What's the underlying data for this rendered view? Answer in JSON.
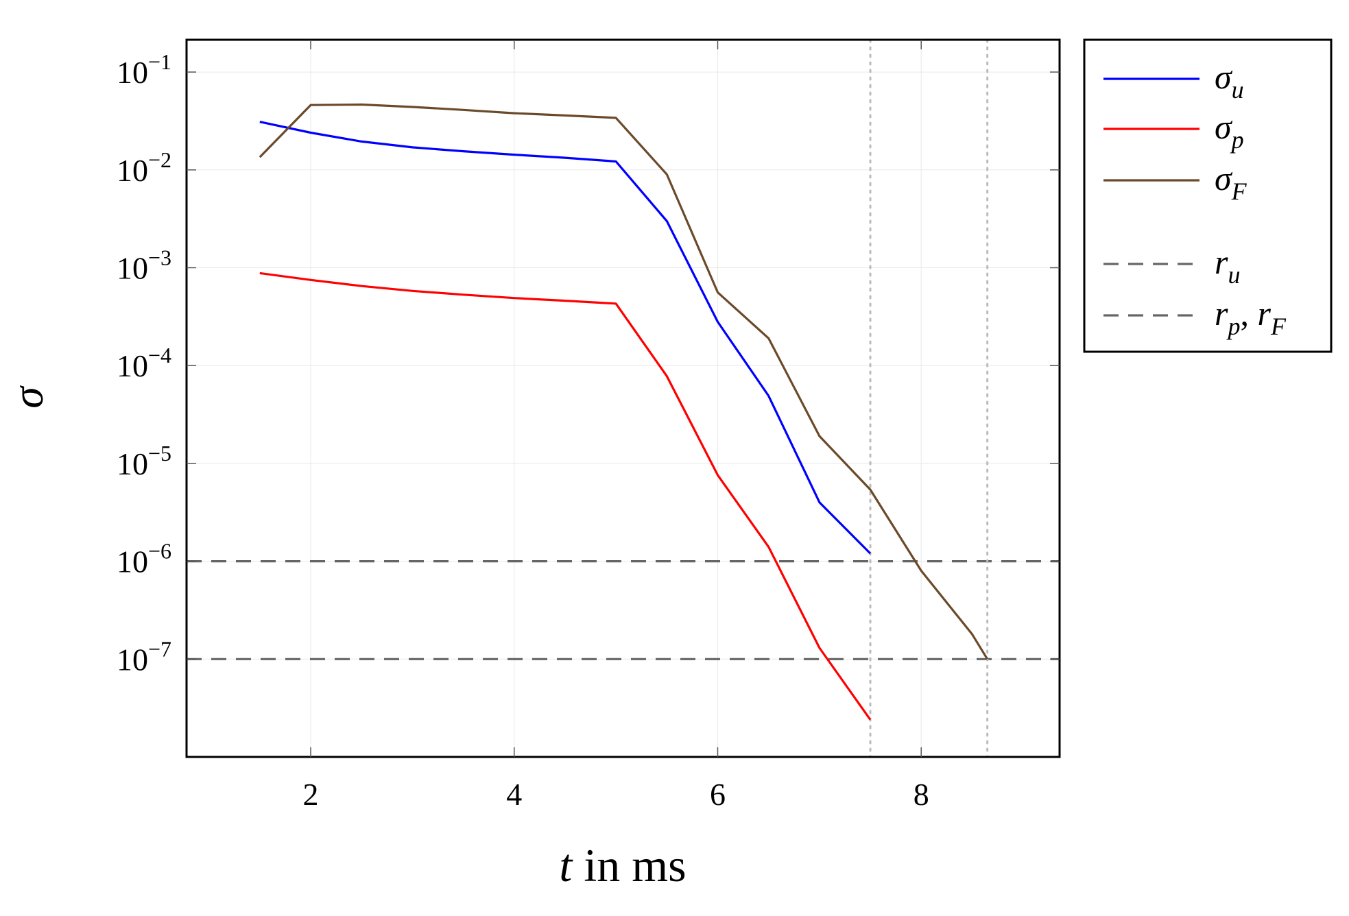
{
  "chart_data": {
    "type": "line",
    "xlabel": {
      "var": "t",
      "rest": " in ms"
    },
    "ylabel": "σ",
    "xlim": [
      0.78,
      9.36
    ],
    "ylim_log10": [
      -8.0,
      -0.67
    ],
    "y_scale": "log",
    "grid": true,
    "x_ticks": [
      2,
      4,
      6,
      8
    ],
    "x_tick_labels": [
      "2",
      "4",
      "6",
      "8"
    ],
    "y_ticks_exp": [
      -1,
      -2,
      -3,
      -4,
      -5,
      -6,
      -7
    ],
    "y_tick_base": "10",
    "y_tick_exponents": [
      "−1",
      "−2",
      "−3",
      "−4",
      "−5",
      "−6",
      "−7"
    ],
    "series": [
      {
        "name": "σ",
        "sub": "u",
        "color": "#0000ff",
        "style": "solid",
        "x": [
          1.5,
          2.0,
          2.5,
          3.0,
          3.5,
          4.0,
          4.5,
          5.0,
          5.5,
          6.0,
          6.5,
          7.0,
          7.5
        ],
        "y": [
          0.031,
          0.024,
          0.0195,
          0.017,
          0.0155,
          0.0143,
          0.0133,
          0.0122,
          0.003,
          0.00028,
          4.9e-05,
          4e-06,
          1.2e-06
        ]
      },
      {
        "name": "σ",
        "sub": "p",
        "color": "#ff0000",
        "style": "solid",
        "x": [
          1.5,
          2.0,
          2.5,
          3.0,
          3.5,
          4.0,
          4.5,
          5.0,
          5.5,
          6.0,
          6.5,
          7.0,
          7.5
        ],
        "y": [
          0.00088,
          0.00075,
          0.00065,
          0.00058,
          0.00053,
          0.00049,
          0.00046,
          0.00043,
          7.8e-05,
          7.6e-06,
          1.4e-06,
          1.3e-07,
          2.4e-08
        ]
      },
      {
        "name": "σ",
        "sub": "F",
        "color": "#6b4a2a",
        "style": "solid",
        "x": [
          1.5,
          2.0,
          2.5,
          3.0,
          3.5,
          4.0,
          4.5,
          5.0,
          5.5,
          6.0,
          6.5,
          7.0,
          7.5,
          8.0,
          8.5,
          8.65
        ],
        "y": [
          0.0135,
          0.046,
          0.0465,
          0.044,
          0.041,
          0.038,
          0.036,
          0.034,
          0.009,
          0.00056,
          0.00019,
          1.9e-05,
          5.4e-06,
          8e-07,
          1.8e-07,
          1e-07
        ]
      }
    ],
    "reference_lines": [
      {
        "name": "r",
        "sub": "u",
        "y": 1e-06,
        "color": "#666666",
        "style": "dashed"
      },
      {
        "name": "r",
        "sub": "p, F",
        "y": 1e-07,
        "color": "#666666",
        "style": "dashed"
      }
    ],
    "vertical_lines": [
      {
        "x": 7.5,
        "color": "#bbbbbb",
        "style": "dotted"
      },
      {
        "x": 8.65,
        "color": "#bbbbbb",
        "style": "dotted"
      }
    ],
    "legend": {
      "placement": "outside-right-top",
      "entries": [
        {
          "main": "σ",
          "sub": "u",
          "color": "#0000ff",
          "style": "solid"
        },
        {
          "main": "σ",
          "sub": "p",
          "color": "#ff0000",
          "style": "solid"
        },
        {
          "main": "σ",
          "sub": "F",
          "color": "#6b4a2a",
          "style": "solid"
        },
        {
          "main": "",
          "sub": "",
          "color": "",
          "style": "blank"
        },
        {
          "main": "r",
          "sub": "u",
          "color": "#666666",
          "style": "dashed"
        },
        {
          "main": "r",
          "sub": "p",
          "main2": "r",
          "sub2": "F",
          "color": "#666666",
          "style": "dashed"
        }
      ]
    }
  }
}
